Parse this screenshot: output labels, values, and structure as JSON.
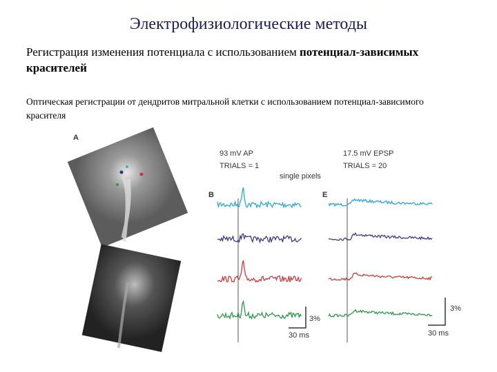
{
  "header": {
    "title": "Электрофизиологические методы"
  },
  "heading": {
    "text": "Регистрация изменения потенциала с использованием ",
    "bold": "потенциал-зависимых красителей"
  },
  "caption": "Оптическая регистрации от дендритов митральной клетки с использованием потенциал-зависимого красителя",
  "figure": {
    "panel_a": {
      "label": "A"
    },
    "panel_b": {
      "label": "B",
      "title": "93 mV AP",
      "trials": "TRIALS = 1",
      "scale_y": "3%",
      "scale_x": "30 ms"
    },
    "panel_e": {
      "label": "E",
      "title": "17.5 mV EPSP",
      "trials": "TRIALS = 20",
      "scale_y": "3%",
      "scale_x": "30 ms"
    },
    "note": "single pixels"
  }
}
